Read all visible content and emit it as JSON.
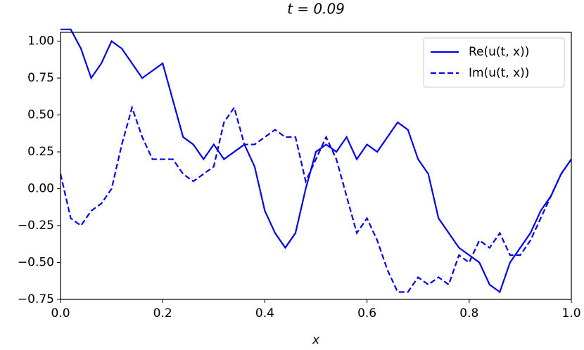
{
  "chart_data": {
    "type": "line",
    "title": "t = 0.09",
    "xlabel": "x",
    "x": [
      0,
      0.02,
      0.04,
      0.06,
      0.08,
      0.1,
      0.12,
      0.14,
      0.16,
      0.18,
      0.2,
      0.22,
      0.24,
      0.26,
      0.28,
      0.3,
      0.32,
      0.34,
      0.36,
      0.38,
      0.4,
      0.42,
      0.44,
      0.46,
      0.48,
      0.5,
      0.52,
      0.54,
      0.56,
      0.58,
      0.6,
      0.62,
      0.64,
      0.66,
      0.68,
      0.7,
      0.72,
      0.74,
      0.76,
      0.78,
      0.8,
      0.82,
      0.84,
      0.86,
      0.88,
      0.9,
      0.92,
      0.94,
      0.96,
      0.98,
      1.0
    ],
    "series": [
      {
        "name": "Re(u(t, x))",
        "color": "#0000ee",
        "linestyle": "solid",
        "values": [
          1.08,
          1.08,
          0.95,
          0.75,
          0.85,
          1.0,
          0.95,
          0.85,
          0.75,
          0.8,
          0.85,
          0.6,
          0.35,
          0.3,
          0.2,
          0.3,
          0.2,
          0.25,
          0.3,
          0.15,
          -0.15,
          -0.3,
          -0.4,
          -0.3,
          0.0,
          0.25,
          0.3,
          0.25,
          0.35,
          0.2,
          0.3,
          0.25,
          0.35,
          0.45,
          0.4,
          0.2,
          0.1,
          -0.2,
          -0.3,
          -0.4,
          -0.45,
          -0.5,
          -0.65,
          -0.7,
          -0.5,
          -0.4,
          -0.3,
          -0.15,
          -0.05,
          0.1,
          0.2
        ]
      },
      {
        "name": "Im(u(t, x))",
        "color": "#0000ee",
        "linestyle": "dashed",
        "values": [
          0.1,
          -0.2,
          -0.25,
          -0.15,
          -0.1,
          0.0,
          0.3,
          0.55,
          0.35,
          0.2,
          0.2,
          0.2,
          0.1,
          0.05,
          0.1,
          0.15,
          0.45,
          0.55,
          0.3,
          0.3,
          0.35,
          0.4,
          0.35,
          0.35,
          0.05,
          0.2,
          0.35,
          0.2,
          -0.05,
          -0.3,
          -0.2,
          -0.35,
          -0.55,
          -0.7,
          -0.7,
          -0.6,
          -0.65,
          -0.6,
          -0.65,
          -0.45,
          -0.5,
          -0.35,
          -0.4,
          -0.3,
          -0.45,
          -0.45,
          -0.35,
          -0.2,
          -0.05,
          0.1,
          0.2
        ]
      }
    ],
    "xlim": [
      0,
      1.0
    ],
    "xticks": [
      {
        "value": 0,
        "label": "0.0"
      },
      {
        "value": 0.2,
        "label": "0.2"
      },
      {
        "value": 0.4,
        "label": "0.4"
      },
      {
        "value": 0.6,
        "label": "0.6"
      },
      {
        "value": 0.8,
        "label": "0.8"
      },
      {
        "value": 1.0,
        "label": "1.0"
      }
    ],
    "ylim": [
      -0.75,
      1.06
    ],
    "yticks": [
      {
        "value": -0.75,
        "label": "−0.75"
      },
      {
        "value": -0.5,
        "label": "−0.50"
      },
      {
        "value": -0.25,
        "label": "−0.25"
      },
      {
        "value": 0,
        "label": "0.00"
      },
      {
        "value": 0.25,
        "label": "0.25"
      },
      {
        "value": 0.5,
        "label": "0.50"
      },
      {
        "value": 0.75,
        "label": "0.75"
      },
      {
        "value": 1.0,
        "label": "1.00"
      }
    ],
    "grid": false,
    "legend": "upper right"
  }
}
